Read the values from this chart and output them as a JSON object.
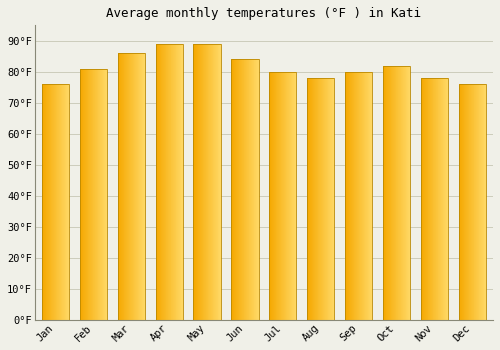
{
  "title": "Average monthly temperatures (°F ) in Kati",
  "months": [
    "Jan",
    "Feb",
    "Mar",
    "Apr",
    "May",
    "Jun",
    "Jul",
    "Aug",
    "Sep",
    "Oct",
    "Nov",
    "Dec"
  ],
  "values": [
    76,
    81,
    86,
    89,
    89,
    84,
    80,
    78,
    80,
    82,
    78,
    76
  ],
  "bar_color_left": "#F5A800",
  "bar_color_right": "#FFD966",
  "bar_edge_color": "#BB8800",
  "background_color": "#F0F0E8",
  "grid_color": "#CCCCBB",
  "title_fontsize": 9,
  "tick_fontsize": 7.5,
  "ylim": [
    0,
    95
  ],
  "yticks": [
    0,
    10,
    20,
    30,
    40,
    50,
    60,
    70,
    80,
    90
  ],
  "ytick_labels": [
    "0°F",
    "10°F",
    "20°F",
    "30°F",
    "40°F",
    "50°F",
    "60°F",
    "70°F",
    "80°F",
    "90°F"
  ]
}
